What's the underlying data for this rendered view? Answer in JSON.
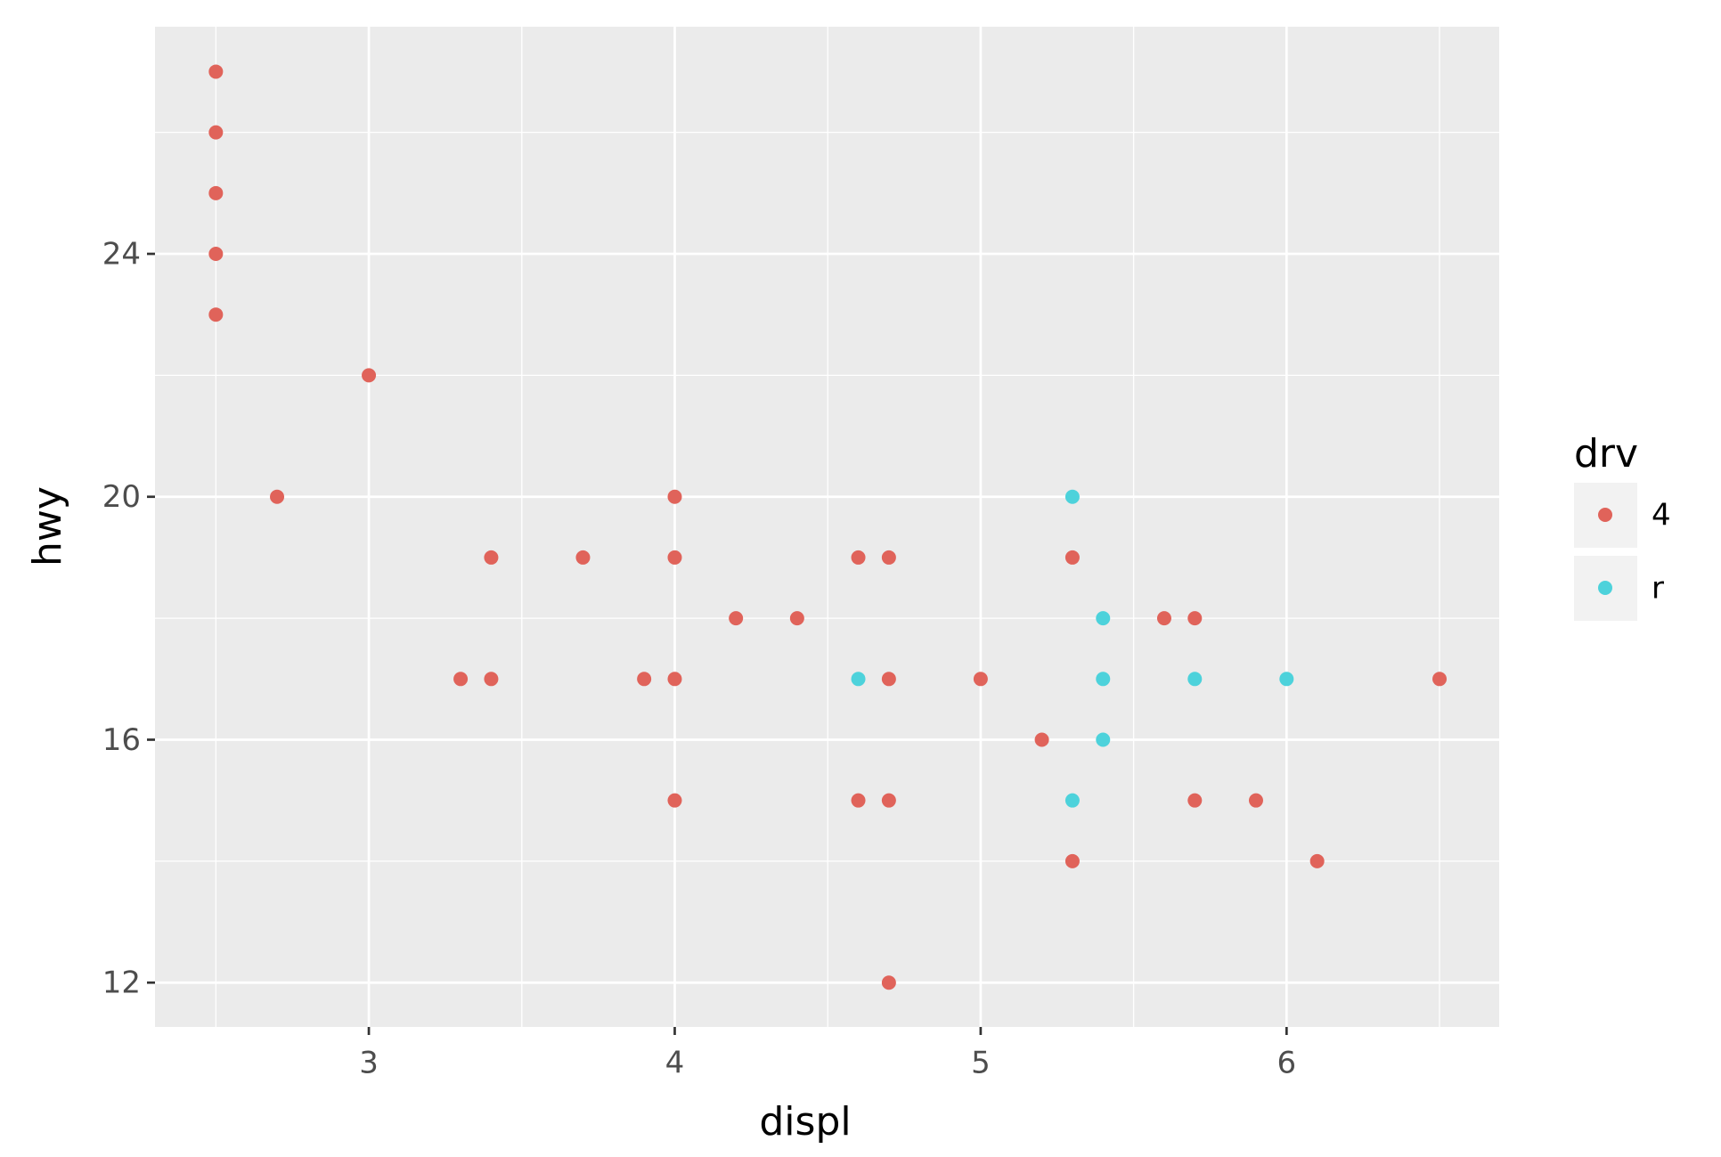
{
  "chart_data": {
    "type": "scatter",
    "x_label": "displ",
    "y_label": "hwy",
    "legend_title": "drv",
    "legend": "right",
    "grid": true,
    "xlim": [
      2.301,
      6.695
    ],
    "ylim": [
      11.27,
      27.74
    ],
    "xticks": [
      3,
      4,
      5,
      6
    ],
    "yticks": [
      12,
      16,
      20,
      24
    ],
    "series": [
      {
        "name": "4",
        "color": "#e0635a",
        "x": [
          2.5,
          2.5,
          2.5,
          2.5,
          2.5,
          3.0,
          2.7,
          4.0,
          4.0,
          4.0,
          4.0,
          3.4,
          3.4,
          3.7,
          4.6,
          4.6,
          4.7,
          4.7,
          4.7,
          4.7,
          4.2,
          4.4,
          3.3,
          3.9,
          5.0,
          5.3,
          5.3,
          5.6,
          5.7,
          5.7,
          5.2,
          5.9,
          6.1,
          6.5
        ],
        "values": [
          27,
          26,
          25,
          24,
          23,
          22,
          20,
          20,
          19,
          17,
          15,
          19,
          17,
          19,
          19,
          15,
          19,
          17,
          15,
          12,
          18,
          18,
          17,
          17,
          17,
          19,
          14,
          18,
          18,
          15,
          16,
          15,
          14,
          17
        ]
      },
      {
        "name": "r",
        "color": "#4dd2db",
        "x": [
          5.3,
          5.4,
          4.6,
          5.4,
          5.7,
          6.0,
          5.4,
          5.3
        ],
        "values": [
          20,
          18,
          17,
          17,
          17,
          17,
          16,
          15
        ]
      }
    ]
  }
}
